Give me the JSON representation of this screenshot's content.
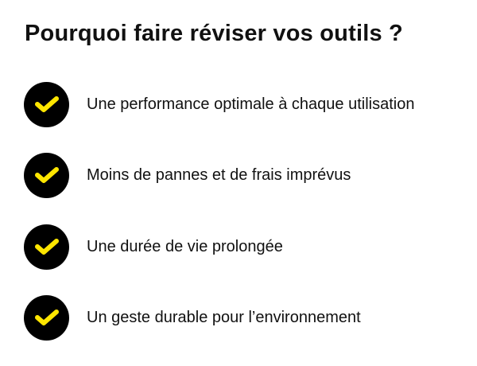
{
  "title": "Pourquoi faire réviser vos outils ?",
  "colors": {
    "icon_bg": "#000000",
    "check": "#FFE600"
  },
  "items": [
    {
      "label": "Une performance optimale à chaque utilisation",
      "icon": "check-icon"
    },
    {
      "label": "Moins de pannes et de frais imprévus",
      "icon": "check-icon"
    },
    {
      "label": "Une durée de vie prolongée",
      "icon": "check-icon"
    },
    {
      "label": "Un geste durable pour l’environnement",
      "icon": "check-icon"
    }
  ]
}
